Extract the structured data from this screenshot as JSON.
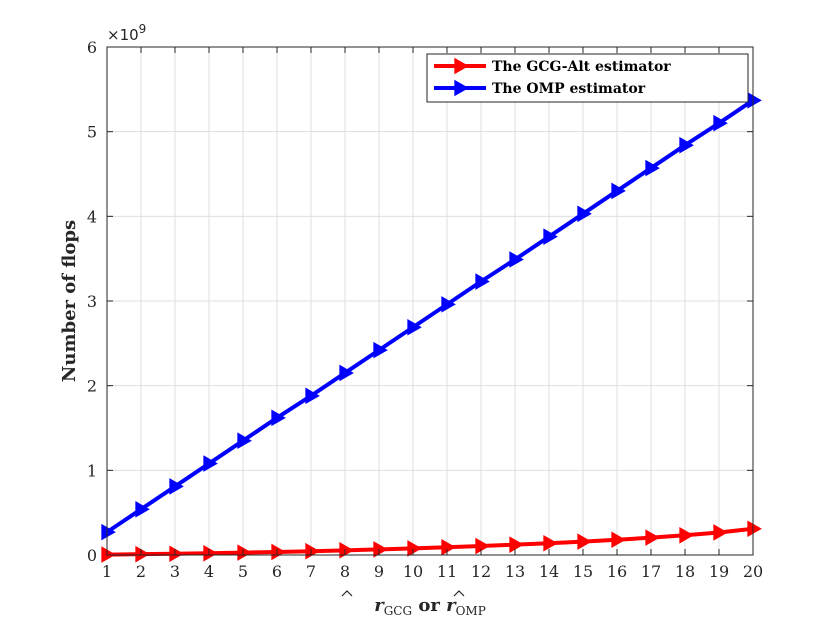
{
  "chart_data": {
    "type": "line",
    "title": "",
    "xlabel_parts": {
      "r1": "r",
      "sub1": "GCG",
      "conj": "or",
      "r2": "r",
      "sub2": "OMP"
    },
    "ylabel": "Number of flops",
    "y_exponent": {
      "base": "×10",
      "power": "9"
    },
    "x": [
      1,
      2,
      3,
      4,
      5,
      6,
      7,
      8,
      9,
      10,
      11,
      12,
      13,
      14,
      15,
      16,
      17,
      18,
      19,
      20
    ],
    "xlim": [
      1,
      20
    ],
    "ylim": [
      0,
      6
    ],
    "x_ticks": [
      "1",
      "2",
      "3",
      "4",
      "5",
      "6",
      "7",
      "8",
      "9",
      "10",
      "11",
      "12",
      "13",
      "14",
      "15",
      "16",
      "17",
      "18",
      "19",
      "20"
    ],
    "y_ticks": [
      "0",
      "1",
      "2",
      "3",
      "4",
      "5",
      "6"
    ],
    "grid": true,
    "legend_position": "top-right",
    "series": [
      {
        "name": "The GCG-Alt estimator",
        "color": "#ff0000",
        "marker": "triangle-right",
        "values": [
          0.005,
          0.01,
          0.015,
          0.02,
          0.028,
          0.036,
          0.045,
          0.055,
          0.066,
          0.078,
          0.091,
          0.106,
          0.122,
          0.139,
          0.158,
          0.18,
          0.205,
          0.233,
          0.266,
          0.31
        ]
      },
      {
        "name": "The OMP estimator",
        "color": "#0000ff",
        "marker": "triangle-right",
        "values": [
          0.27,
          0.54,
          0.81,
          1.08,
          1.35,
          1.62,
          1.88,
          2.15,
          2.42,
          2.69,
          2.96,
          3.23,
          3.49,
          3.76,
          4.03,
          4.3,
          4.57,
          4.84,
          5.1,
          5.37
        ]
      }
    ]
  }
}
